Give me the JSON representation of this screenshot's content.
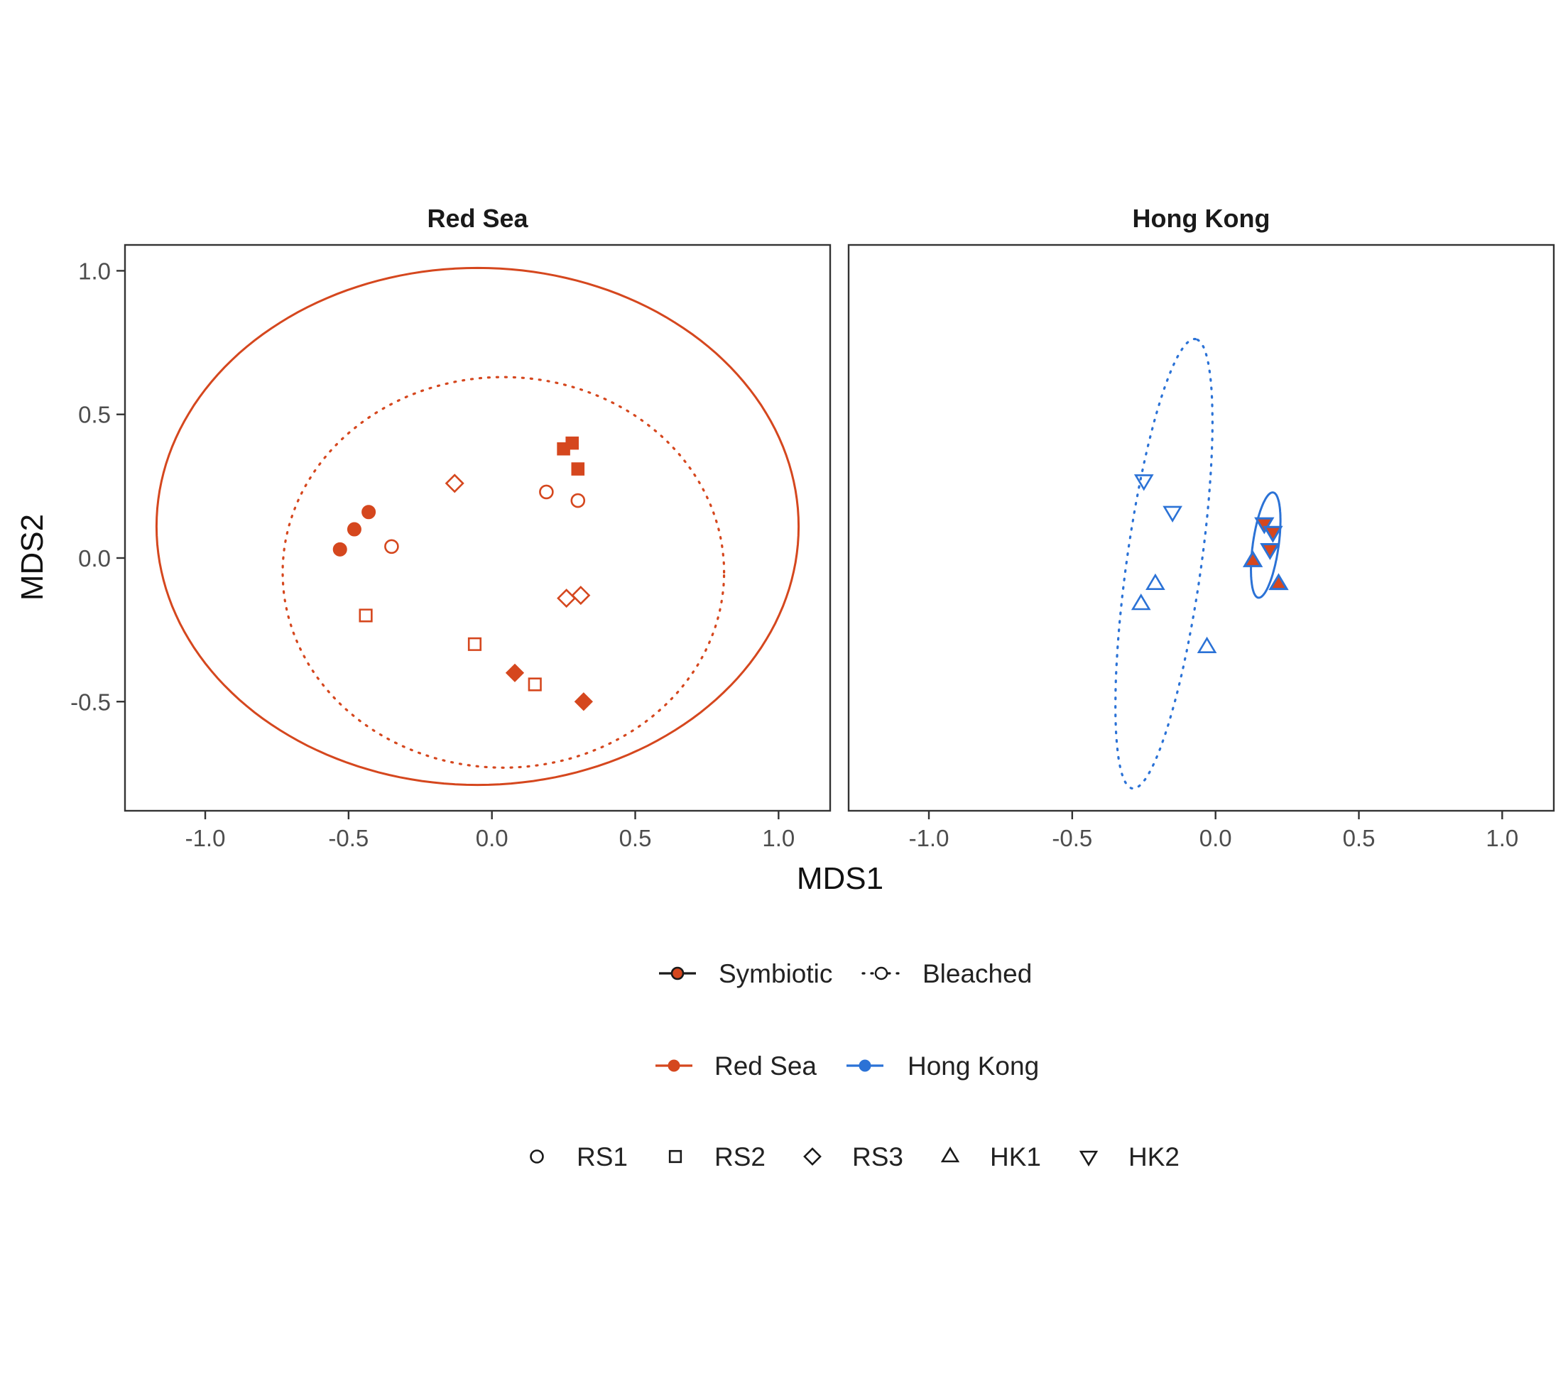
{
  "colors": {
    "red_sea": "#d5471e",
    "hong_kong": "#2b72d6",
    "axis": "#333333",
    "text": "#222222",
    "tick_text": "#4d4d4d"
  },
  "chart_data": {
    "type": "scatter",
    "xlabel": "MDS1",
    "ylabel": "MDS2",
    "xlim": [
      -1.28,
      1.18
    ],
    "ylim": [
      -0.88,
      1.09
    ],
    "x_ticks": [
      -1.0,
      -0.5,
      0.0,
      0.5,
      1.0
    ],
    "x_tick_labels": [
      "-1.0",
      "-0.5",
      "0.0",
      "0.5",
      "1.0"
    ],
    "y_ticks": [
      -0.5,
      0.0,
      0.5,
      1.0
    ],
    "y_tick_labels": [
      "-0.5",
      "0.0",
      "0.5",
      "1.0"
    ],
    "grid": false,
    "legend_position": "bottom",
    "panels": [
      {
        "title": "Red Sea",
        "color_key": "red_sea",
        "ellipses": [
          {
            "condition": "Symbiotic",
            "linestyle": "solid",
            "cx": -0.05,
            "cy": 0.11,
            "rx": 1.12,
            "ry": 0.9,
            "angle": 0
          },
          {
            "condition": "Bleached",
            "linestyle": "dotted",
            "cx": 0.04,
            "cy": -0.05,
            "rx": 0.77,
            "ry": 0.68,
            "angle": 0
          }
        ],
        "points": [
          {
            "x": -0.53,
            "y": 0.03,
            "shape": "circle",
            "condition": "Symbiotic"
          },
          {
            "x": -0.48,
            "y": 0.1,
            "shape": "circle",
            "condition": "Symbiotic"
          },
          {
            "x": -0.43,
            "y": 0.16,
            "shape": "circle",
            "condition": "Symbiotic"
          },
          {
            "x": -0.35,
            "y": 0.04,
            "shape": "circle",
            "condition": "Bleached"
          },
          {
            "x": 0.19,
            "y": 0.23,
            "shape": "circle",
            "condition": "Bleached"
          },
          {
            "x": 0.3,
            "y": 0.2,
            "shape": "circle",
            "condition": "Bleached"
          },
          {
            "x": 0.25,
            "y": 0.38,
            "shape": "square",
            "condition": "Symbiotic"
          },
          {
            "x": 0.28,
            "y": 0.4,
            "shape": "square",
            "condition": "Symbiotic"
          },
          {
            "x": 0.3,
            "y": 0.31,
            "shape": "square",
            "condition": "Symbiotic"
          },
          {
            "x": -0.44,
            "y": -0.2,
            "shape": "square",
            "condition": "Bleached"
          },
          {
            "x": -0.06,
            "y": -0.3,
            "shape": "square",
            "condition": "Bleached"
          },
          {
            "x": 0.15,
            "y": -0.44,
            "shape": "square",
            "condition": "Bleached"
          },
          {
            "x": 0.08,
            "y": -0.4,
            "shape": "diamond",
            "condition": "Symbiotic"
          },
          {
            "x": 0.32,
            "y": -0.5,
            "shape": "diamond",
            "condition": "Symbiotic"
          },
          {
            "x": -0.13,
            "y": 0.26,
            "shape": "diamond",
            "condition": "Bleached"
          },
          {
            "x": 0.26,
            "y": -0.14,
            "shape": "diamond",
            "condition": "Bleached"
          },
          {
            "x": 0.31,
            "y": -0.13,
            "shape": "diamond",
            "condition": "Bleached"
          }
        ]
      },
      {
        "title": "Hong Kong",
        "color_key": "hong_kong",
        "ellipses": [
          {
            "condition": "Symbiotic",
            "linestyle": "solid",
            "cx": 0.175,
            "cy": 0.045,
            "rx": 0.185,
            "ry": 0.045,
            "angle": 82
          },
          {
            "condition": "Bleached",
            "linestyle": "dotted",
            "cx": -0.18,
            "cy": -0.02,
            "rx": 0.79,
            "ry": 0.13,
            "angle": 82
          }
        ],
        "points": [
          {
            "x": 0.13,
            "y": -0.01,
            "shape": "triangle-up",
            "condition": "Symbiotic"
          },
          {
            "x": 0.22,
            "y": -0.09,
            "shape": "triangle-up",
            "condition": "Symbiotic"
          },
          {
            "x": 0.17,
            "y": 0.12,
            "shape": "triangle-down",
            "condition": "Symbiotic"
          },
          {
            "x": 0.2,
            "y": 0.09,
            "shape": "triangle-down",
            "condition": "Symbiotic"
          },
          {
            "x": 0.19,
            "y": 0.03,
            "shape": "triangle-down",
            "condition": "Symbiotic"
          },
          {
            "x": -0.21,
            "y": -0.09,
            "shape": "triangle-up",
            "condition": "Bleached"
          },
          {
            "x": -0.26,
            "y": -0.16,
            "shape": "triangle-up",
            "condition": "Bleached"
          },
          {
            "x": -0.03,
            "y": -0.31,
            "shape": "triangle-up",
            "condition": "Bleached"
          },
          {
            "x": -0.25,
            "y": 0.27,
            "shape": "triangle-down",
            "condition": "Bleached"
          },
          {
            "x": -0.15,
            "y": 0.16,
            "shape": "triangle-down",
            "condition": "Bleached"
          }
        ]
      }
    ],
    "legends": [
      {
        "kind": "condition",
        "items": [
          {
            "label": "Symbiotic",
            "linestyle": "solid"
          },
          {
            "label": "Bleached",
            "linestyle": "dotted"
          }
        ]
      },
      {
        "kind": "site",
        "items": [
          {
            "label": "Red Sea",
            "color_key": "red_sea"
          },
          {
            "label": "Hong Kong",
            "color_key": "hong_kong"
          }
        ]
      },
      {
        "kind": "shape",
        "items": [
          {
            "label": "RS1",
            "shape": "circle"
          },
          {
            "label": "RS2",
            "shape": "square"
          },
          {
            "label": "RS3",
            "shape": "diamond"
          },
          {
            "label": "HK1",
            "shape": "triangle-up"
          },
          {
            "label": "HK2",
            "shape": "triangle-down"
          }
        ]
      }
    ]
  }
}
